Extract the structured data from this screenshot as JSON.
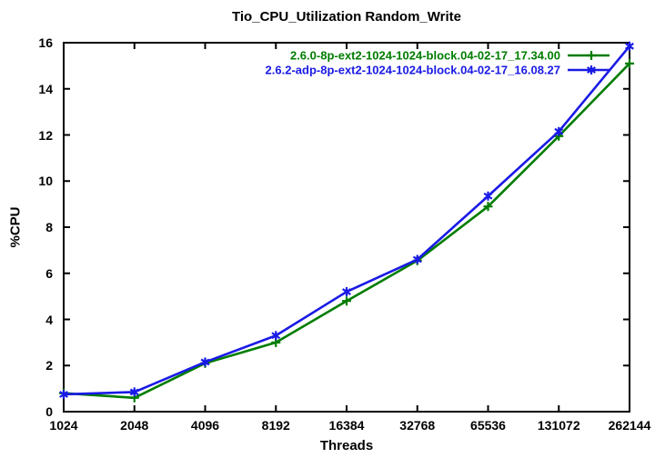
{
  "chart_data": {
    "type": "line",
    "title": "Tio_CPU_Utilization Random_Write",
    "xlabel": "Threads",
    "ylabel": "%CPU",
    "x_tick_labels": [
      "1024",
      "2048",
      "4096",
      "8192",
      "16384",
      "32768",
      "65536",
      "131072",
      "262144"
    ],
    "y_ticks": [
      0,
      2,
      4,
      6,
      8,
      10,
      12,
      14,
      16
    ],
    "ylim": [
      0,
      16
    ],
    "grid": false,
    "legend_position": "top-right-inside",
    "axis_color": "#000000",
    "background_color": "#ffffff",
    "series": [
      {
        "name": "2.6.0-8p-ext2-1024-1024-block.04-02-17_17.34.00",
        "color": "#007d00",
        "marker": "plus",
        "values": [
          0.8,
          0.6,
          2.1,
          3.0,
          4.8,
          6.55,
          8.9,
          11.95,
          15.1
        ]
      },
      {
        "name": "2.6.2-adp-8p-ext2-1024-1024-block.04-02-17_16.08.27",
        "color": "#1a1ae6",
        "marker": "asterisk",
        "values": [
          0.75,
          0.85,
          2.15,
          3.3,
          5.2,
          6.6,
          9.35,
          12.15,
          15.85
        ]
      }
    ]
  }
}
